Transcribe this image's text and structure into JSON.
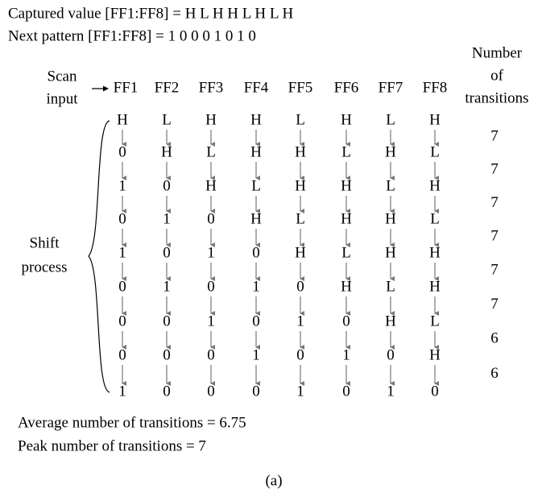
{
  "header": {
    "captured": "Captured value [FF1:FF8] = H L H H L H L H",
    "next": "Next pattern [FF1:FF8] = 1 0 0 0 1 0 1 0"
  },
  "scan_input": [
    "Scan",
    "input"
  ],
  "transitions_header": [
    "Number",
    "of",
    "transitions"
  ],
  "columns": [
    "FF1",
    "FF2",
    "FF3",
    "FF4",
    "FF5",
    "FF6",
    "FF7",
    "FF8"
  ],
  "rows": [
    [
      "H",
      "L",
      "H",
      "H",
      "L",
      "H",
      "L",
      "H"
    ],
    [
      "0",
      "H",
      "L",
      "H",
      "H",
      "L",
      "H",
      "L"
    ],
    [
      "1",
      "0",
      "H",
      "L",
      "H",
      "H",
      "L",
      "H"
    ],
    [
      "0",
      "1",
      "0",
      "H",
      "L",
      "H",
      "H",
      "L"
    ],
    [
      "1",
      "0",
      "1",
      "0",
      "H",
      "L",
      "H",
      "H"
    ],
    [
      "0",
      "1",
      "0",
      "1",
      "0",
      "H",
      "L",
      "H"
    ],
    [
      "0",
      "0",
      "1",
      "0",
      "1",
      "0",
      "H",
      "L"
    ],
    [
      "0",
      "0",
      "0",
      "1",
      "0",
      "1",
      "0",
      "H"
    ],
    [
      "1",
      "0",
      "0",
      "0",
      "1",
      "0",
      "1",
      "0"
    ]
  ],
  "transitions": [
    7,
    7,
    7,
    7,
    7,
    7,
    6,
    6
  ],
  "shift_label": [
    "Shift",
    "process"
  ],
  "footer": {
    "average": "Average number of transitions = 6.75",
    "peak": "Peak number of transitions = 7",
    "caption": "(a)"
  }
}
